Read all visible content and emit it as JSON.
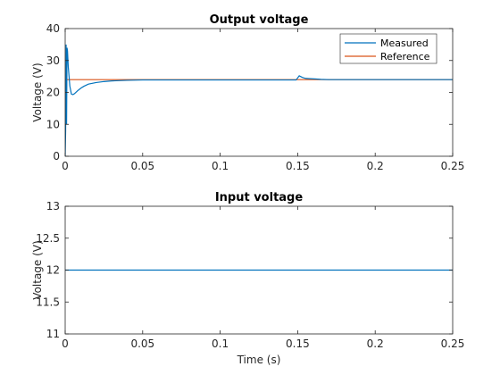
{
  "chart_data": [
    {
      "type": "line",
      "title": "Output voltage",
      "xlabel": "",
      "ylabel": "Voltage (V)",
      "xlim": [
        0,
        0.25
      ],
      "ylim": [
        0,
        40
      ],
      "xticks": [
        0,
        0.05,
        0.1,
        0.15,
        0.2,
        0.25
      ],
      "yticks": [
        0,
        10,
        20,
        30,
        40
      ],
      "xtick_labels": [
        "0",
        "0.05",
        "0.1",
        "0.15",
        "0.2",
        "0.25"
      ],
      "ytick_labels": [
        "0",
        "10",
        "20",
        "30",
        "40"
      ],
      "grid": false,
      "legend": "top-right",
      "series": [
        {
          "name": "Measured",
          "color": "#0072BD",
          "x": [
            0,
            0.0003,
            0.0006,
            0.0009,
            0.0012,
            0.0015,
            0.002,
            0.0025,
            0.003,
            0.004,
            0.005,
            0.006,
            0.008,
            0.01,
            0.012,
            0.015,
            0.02,
            0.025,
            0.03,
            0.04,
            0.05,
            0.1,
            0.149,
            0.151,
            0.153,
            0.155,
            0.158,
            0.162,
            0.165,
            0.17,
            0.2,
            0.25
          ],
          "values": [
            0,
            8,
            35,
            10,
            34,
            33,
            28,
            25,
            22,
            19.5,
            19.3,
            19.6,
            20.5,
            21.3,
            21.9,
            22.6,
            23.1,
            23.4,
            23.6,
            23.8,
            23.9,
            23.9,
            23.9,
            25.2,
            24.7,
            24.4,
            24.3,
            24.2,
            24.1,
            24.0,
            24.0,
            24.0
          ]
        },
        {
          "name": "Reference",
          "color": "#D95319",
          "x": [
            0,
            0.25
          ],
          "values": [
            24,
            24
          ]
        }
      ]
    },
    {
      "type": "line",
      "title": "Input voltage",
      "xlabel": "Time (s)",
      "ylabel": "Voltage (V)",
      "xlim": [
        0,
        0.25
      ],
      "ylim": [
        11,
        13
      ],
      "xticks": [
        0,
        0.05,
        0.1,
        0.15,
        0.2,
        0.25
      ],
      "yticks": [
        11,
        11.5,
        12,
        12.5,
        13
      ],
      "xtick_labels": [
        "0",
        "0.05",
        "0.1",
        "0.15",
        "0.2",
        "0.25"
      ],
      "ytick_labels": [
        "11",
        "11.5",
        "12",
        "12.5",
        "13"
      ],
      "grid": false,
      "legend": "none",
      "series": [
        {
          "color": "#0072BD",
          "x": [
            0,
            0.25
          ],
          "values": [
            12,
            12
          ]
        }
      ]
    }
  ]
}
